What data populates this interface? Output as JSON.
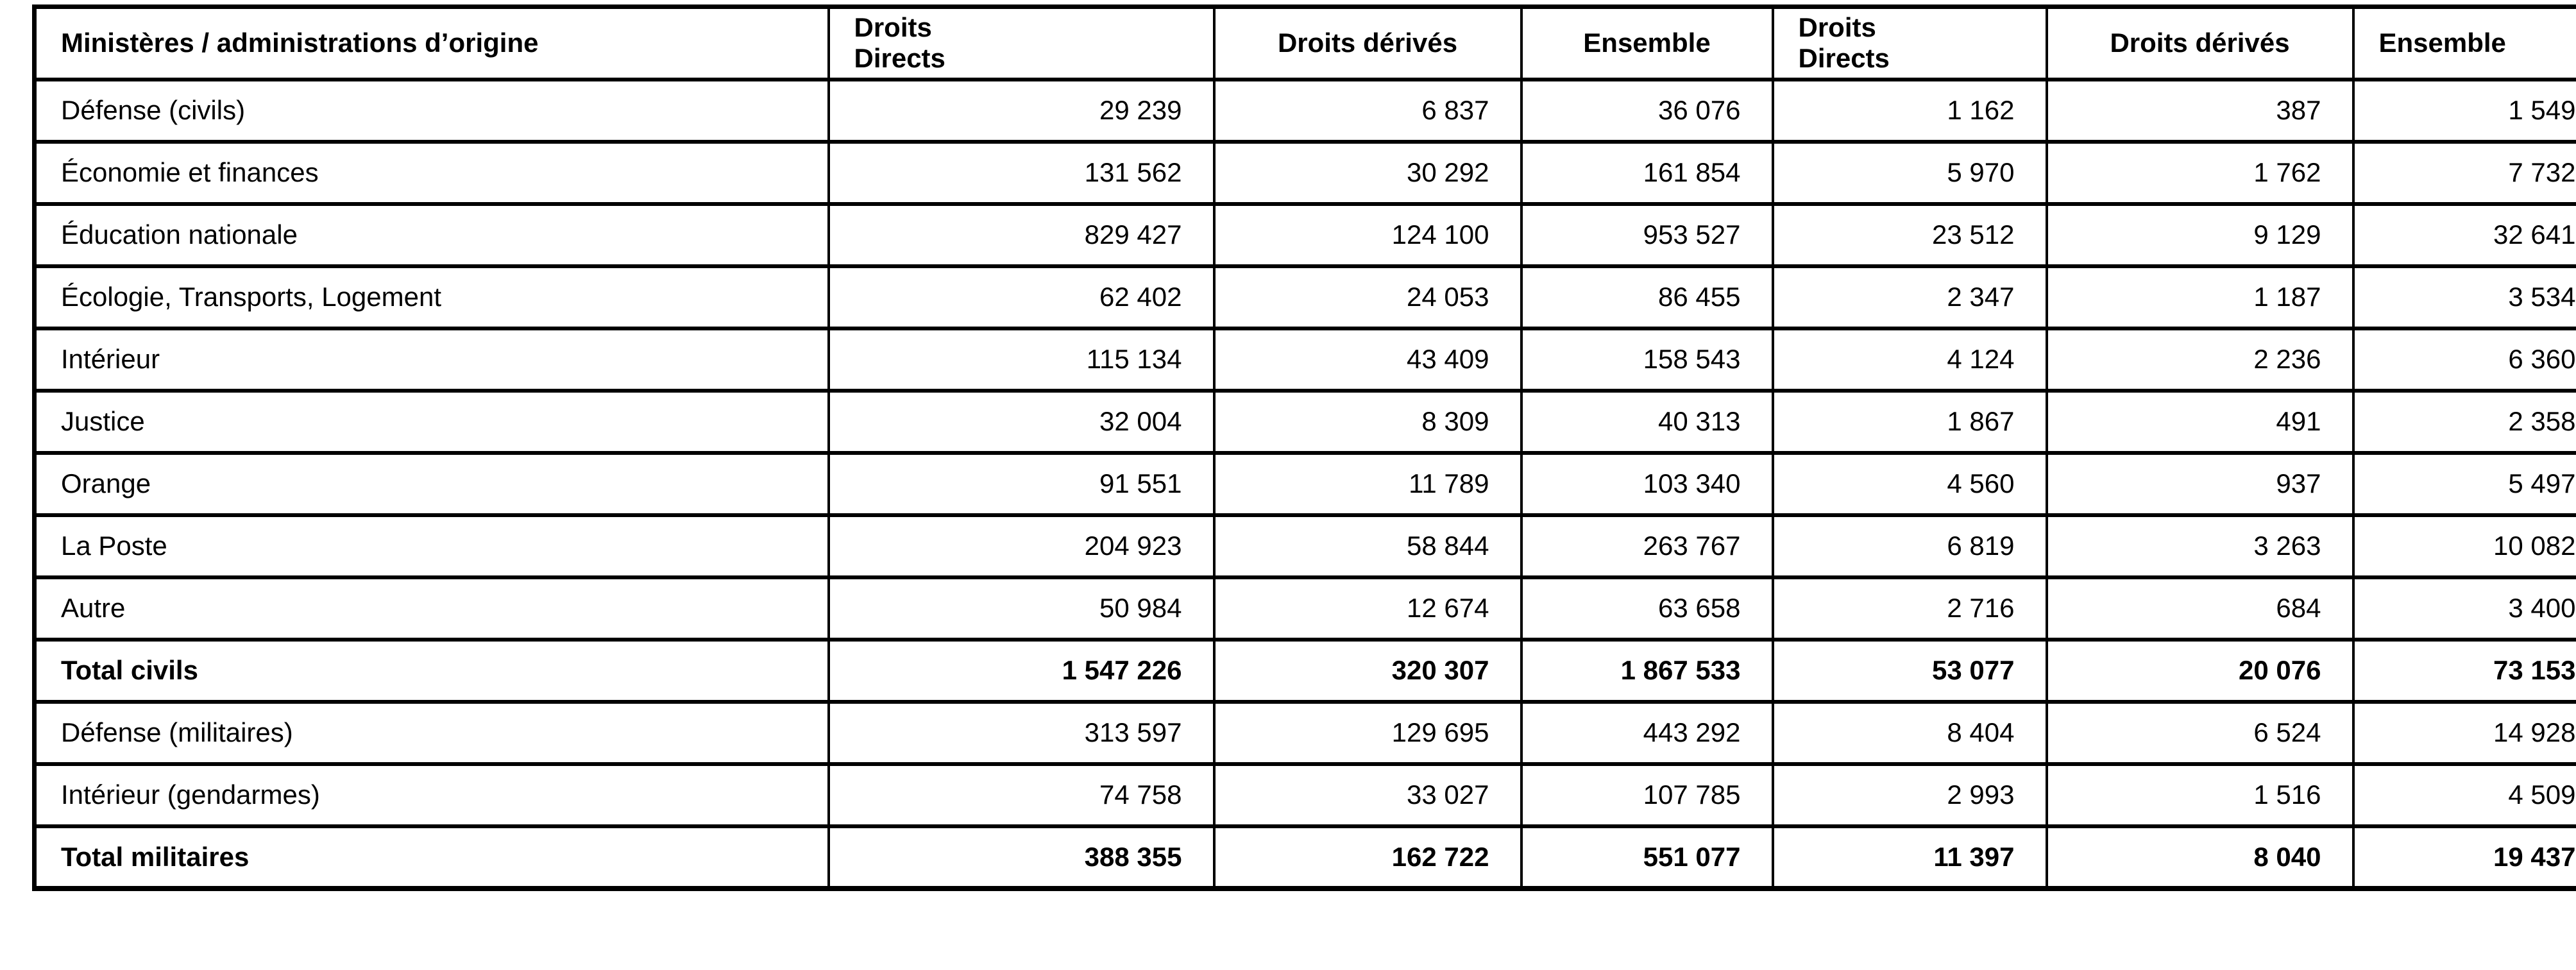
{
  "page": {
    "background_color": "#ffffff",
    "text_color": "#000000",
    "border_color": "#000000"
  },
  "table": {
    "columns": [
      "Ministères / administrations d’origine",
      "Droits\nDirects",
      "Droits dérivés",
      "Ensemble",
      "Droits\nDirects",
      "Droits dérivés",
      "Ensemble"
    ],
    "rows": [
      {
        "label": "Défense (civils)",
        "values": [
          "29 239",
          "6 837",
          "36 076",
          "1 162",
          "387",
          "1 549"
        ],
        "bold": false
      },
      {
        "label": "Économie et finances",
        "values": [
          "131 562",
          "30 292",
          "161 854",
          "5 970",
          "1 762",
          "7 732"
        ],
        "bold": false
      },
      {
        "label": "Éducation nationale",
        "values": [
          "829 427",
          "124 100",
          "953 527",
          "23 512",
          "9 129",
          "32 641"
        ],
        "bold": false
      },
      {
        "label": "Écologie, Transports, Logement",
        "values": [
          "62 402",
          "24 053",
          "86 455",
          "2 347",
          "1 187",
          "3 534"
        ],
        "bold": false
      },
      {
        "label": "Intérieur",
        "values": [
          "115 134",
          "43 409",
          "158 543",
          "4 124",
          "2 236",
          "6 360"
        ],
        "bold": false
      },
      {
        "label": "Justice",
        "values": [
          "32 004",
          "8 309",
          "40 313",
          "1 867",
          "491",
          "2 358"
        ],
        "bold": false
      },
      {
        "label": "Orange",
        "values": [
          "91 551",
          "11 789",
          "103 340",
          "4 560",
          "937",
          "5 497"
        ],
        "bold": false
      },
      {
        "label": "La Poste",
        "values": [
          "204 923",
          "58 844",
          "263 767",
          "6 819",
          "3 263",
          "10 082"
        ],
        "bold": false
      },
      {
        "label": "Autre",
        "values": [
          "50 984",
          "12 674",
          "63 658",
          "2 716",
          "684",
          "3 400"
        ],
        "bold": false
      },
      {
        "label": "Total civils",
        "values": [
          "1 547 226",
          "320 307",
          "1 867 533",
          "53 077",
          "20 076",
          "73 153"
        ],
        "bold": true
      },
      {
        "label": "Défense (militaires)",
        "values": [
          "313 597",
          "129 695",
          "443 292",
          "8 404",
          "6 524",
          "14 928"
        ],
        "bold": false
      },
      {
        "label": "Intérieur (gendarmes)",
        "values": [
          "74 758",
          "33 027",
          "107 785",
          "2 993",
          "1 516",
          "4 509"
        ],
        "bold": false
      },
      {
        "label": "Total militaires",
        "values": [
          "388 355",
          "162 722",
          "551 077",
          "11 397",
          "8 040",
          "19 437"
        ],
        "bold": true
      }
    ]
  }
}
